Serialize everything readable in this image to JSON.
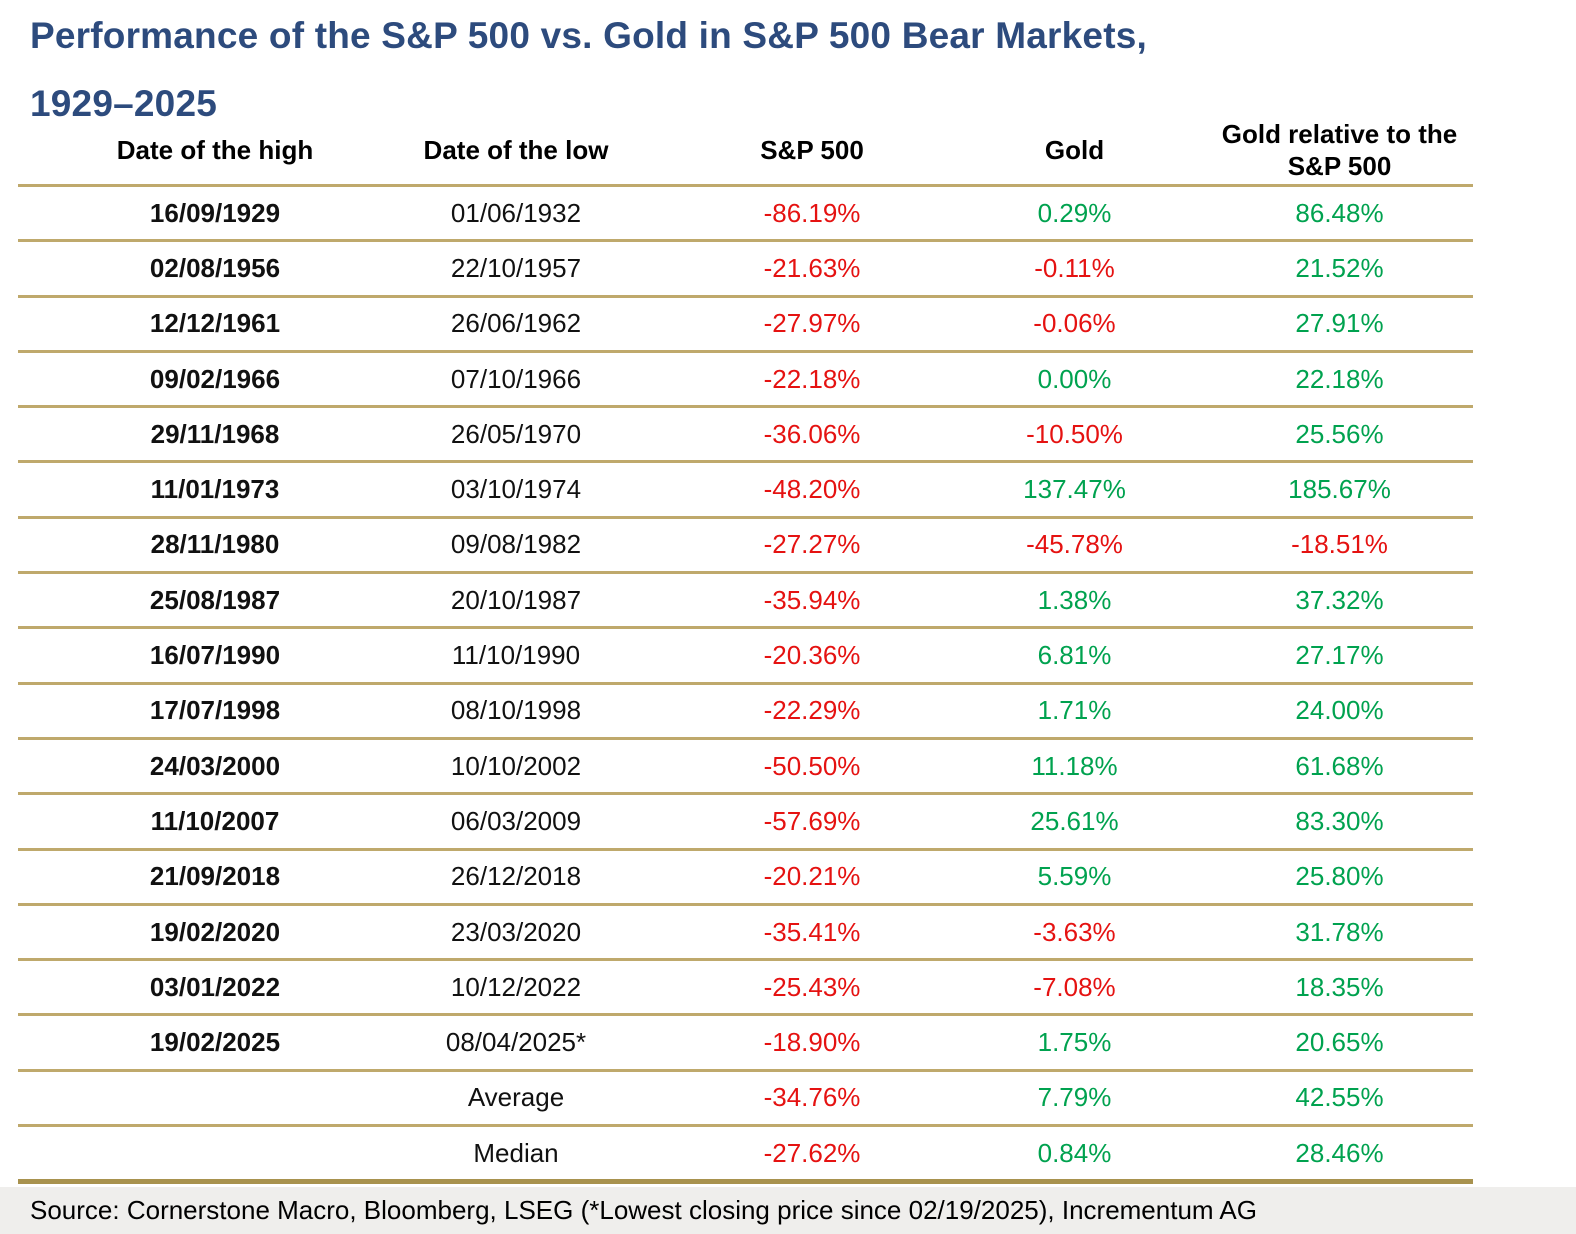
{
  "title": {
    "line1": "Performance of the S&P 500 vs. Gold in S&P 500 Bear Markets,",
    "line2": "1929–2025"
  },
  "source": "Source: Cornerstone Macro, Bloomberg, LSEG (*Lowest closing price since 02/19/2025), Incrementum AG",
  "colors": {
    "title_navy": "#2d4b7d",
    "positive_green": "#00a24f",
    "negative_red": "#e51211",
    "rule_gold": "#bfa96c",
    "bottom_rule_gold": "#a8924e",
    "footer_bg": "#efeeec"
  },
  "chart_data": {
    "type": "table",
    "title": "Performance of the S&P 500 vs. Gold in S&P 500 Bear Markets, 1929–2025",
    "columns": [
      "Date of the high",
      "Date of the low",
      "S&P 500",
      "Gold",
      "Gold relative to the S&P 500"
    ],
    "rows": [
      {
        "high": "16/09/1929",
        "low": "01/06/1932",
        "sp500": "-86.19%",
        "gold": "0.29%",
        "gold_relative": "86.48%"
      },
      {
        "high": "02/08/1956",
        "low": "22/10/1957",
        "sp500": "-21.63%",
        "gold": "-0.11%",
        "gold_relative": "21.52%"
      },
      {
        "high": "12/12/1961",
        "low": "26/06/1962",
        "sp500": "-27.97%",
        "gold": "-0.06%",
        "gold_relative": "27.91%"
      },
      {
        "high": "09/02/1966",
        "low": "07/10/1966",
        "sp500": "-22.18%",
        "gold": "0.00%",
        "gold_relative": "22.18%"
      },
      {
        "high": "29/11/1968",
        "low": "26/05/1970",
        "sp500": "-36.06%",
        "gold": "-10.50%",
        "gold_relative": "25.56%"
      },
      {
        "high": "11/01/1973",
        "low": "03/10/1974",
        "sp500": "-48.20%",
        "gold": "137.47%",
        "gold_relative": "185.67%"
      },
      {
        "high": "28/11/1980",
        "low": "09/08/1982",
        "sp500": "-27.27%",
        "gold": "-45.78%",
        "gold_relative": "-18.51%"
      },
      {
        "high": "25/08/1987",
        "low": "20/10/1987",
        "sp500": "-35.94%",
        "gold": "1.38%",
        "gold_relative": "37.32%"
      },
      {
        "high": "16/07/1990",
        "low": "11/10/1990",
        "sp500": "-20.36%",
        "gold": "6.81%",
        "gold_relative": "27.17%"
      },
      {
        "high": "17/07/1998",
        "low": "08/10/1998",
        "sp500": "-22.29%",
        "gold": "1.71%",
        "gold_relative": "24.00%"
      },
      {
        "high": "24/03/2000",
        "low": "10/10/2002",
        "sp500": "-50.50%",
        "gold": "11.18%",
        "gold_relative": "61.68%"
      },
      {
        "high": "11/10/2007",
        "low": "06/03/2009",
        "sp500": "-57.69%",
        "gold": "25.61%",
        "gold_relative": "83.30%"
      },
      {
        "high": "21/09/2018",
        "low": "26/12/2018",
        "sp500": "-20.21%",
        "gold": "5.59%",
        "gold_relative": "25.80%"
      },
      {
        "high": "19/02/2020",
        "low": "23/03/2020",
        "sp500": "-35.41%",
        "gold": "-3.63%",
        "gold_relative": "31.78%"
      },
      {
        "high": "03/01/2022",
        "low": "10/12/2022",
        "sp500": "-25.43%",
        "gold": "-7.08%",
        "gold_relative": "18.35%"
      },
      {
        "high": "19/02/2025",
        "low": "08/04/2025*",
        "sp500": "-18.90%",
        "gold": "1.75%",
        "gold_relative": "20.65%"
      }
    ],
    "summary_rows": [
      {
        "label": "Average",
        "sp500": "-34.76%",
        "gold": "7.79%",
        "gold_relative": "42.55%"
      },
      {
        "label": "Median",
        "sp500": "-27.62%",
        "gold": "0.84%",
        "gold_relative": "28.46%"
      }
    ]
  }
}
